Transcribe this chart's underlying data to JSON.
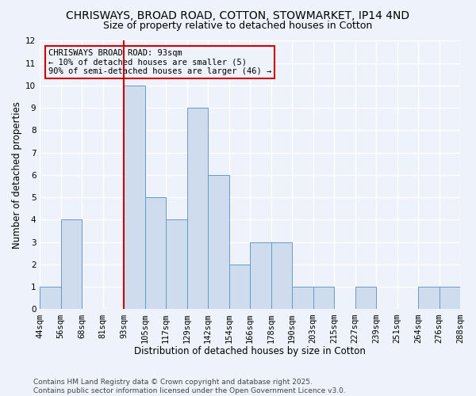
{
  "title": "CHRISWAYS, BROAD ROAD, COTTON, STOWMARKET, IP14 4ND",
  "subtitle": "Size of property relative to detached houses in Cotton",
  "xlabel": "Distribution of detached houses by size in Cotton",
  "ylabel": "Number of detached properties",
  "bin_labels": [
    "44sqm",
    "56sqm",
    "68sqm",
    "81sqm",
    "93sqm",
    "105sqm",
    "117sqm",
    "129sqm",
    "142sqm",
    "154sqm",
    "166sqm",
    "178sqm",
    "190sqm",
    "203sqm",
    "215sqm",
    "227sqm",
    "239sqm",
    "251sqm",
    "264sqm",
    "276sqm",
    "288sqm"
  ],
  "counts": [
    1,
    4,
    0,
    0,
    10,
    5,
    4,
    9,
    6,
    2,
    3,
    3,
    1,
    1,
    0,
    1,
    0,
    0,
    1,
    1
  ],
  "bar_color": "#cfdcee",
  "bar_edge_color": "#6699cc",
  "ylim": [
    0,
    12
  ],
  "yticks": [
    0,
    1,
    2,
    3,
    4,
    5,
    6,
    7,
    8,
    9,
    10,
    11,
    12
  ],
  "annotation_line1": "CHRISWAYS BROAD ROAD: 93sqm",
  "annotation_line2": "← 10% of detached houses are smaller (5)",
  "annotation_line3": "90% of semi-detached houses are larger (46) →",
  "vline_bin_index": 4,
  "vline_color": "#cc0000",
  "footer_line1": "Contains HM Land Registry data © Crown copyright and database right 2025.",
  "footer_line2": "Contains public sector information licensed under the Open Government Licence v3.0.",
  "background_color": "#eef2fa",
  "grid_color": "#ffffff",
  "title_fontsize": 10,
  "subtitle_fontsize": 9,
  "axis_label_fontsize": 8.5,
  "tick_fontsize": 7.5,
  "footer_fontsize": 6.5,
  "annotation_fontsize": 7.5
}
